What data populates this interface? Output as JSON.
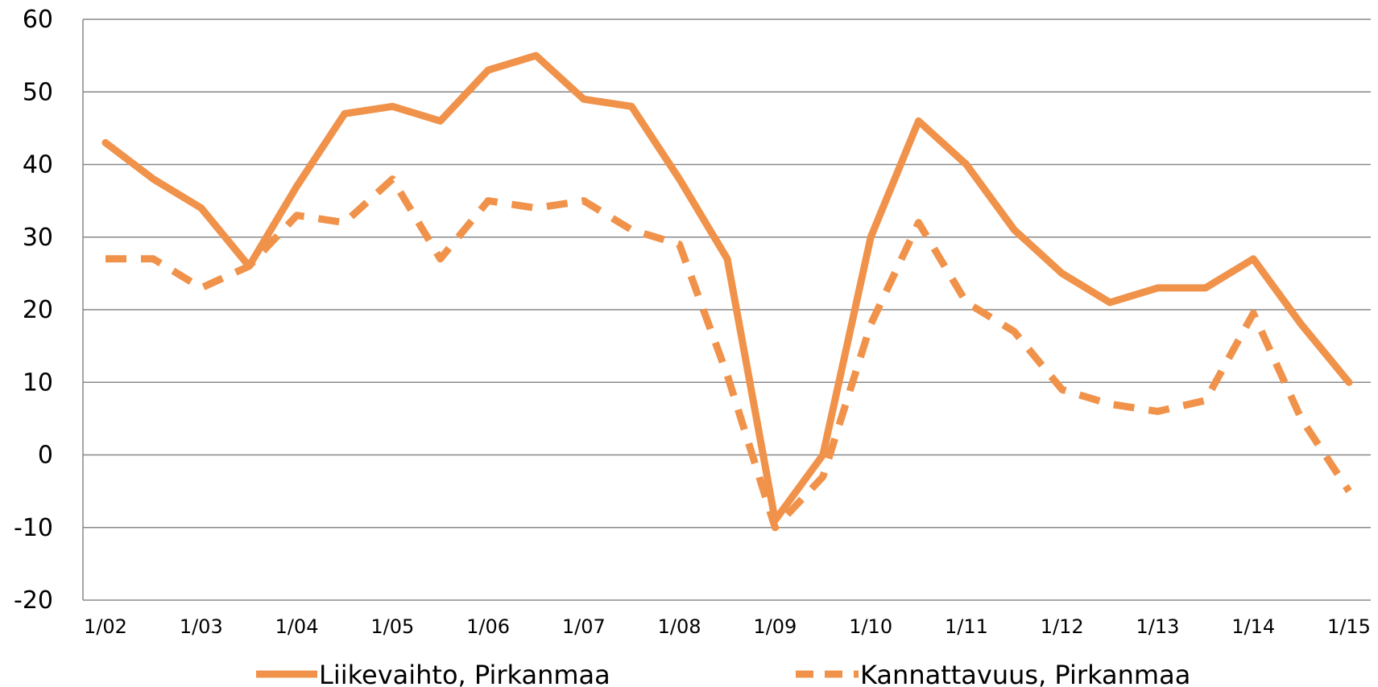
{
  "chart_data": {
    "type": "line",
    "title": "",
    "xlabel": "",
    "ylabel": "",
    "ylim": [
      -20,
      60
    ],
    "yticks": [
      "60",
      "50",
      "40",
      "30",
      "20",
      "10",
      "0",
      "-10",
      "-20"
    ],
    "x_tick_labels": [
      "1/02",
      "1/03",
      "1/04",
      "1/05",
      "1/06",
      "1/07",
      "1/08",
      "1/09",
      "1/10",
      "1/11",
      "1/12",
      "1/13",
      "1/14",
      "1/15"
    ],
    "grid": true,
    "legend_position": "bottom",
    "x": [
      "1/02",
      "7/02",
      "1/03",
      "7/03",
      "1/04",
      "7/04",
      "1/05",
      "7/05",
      "1/06",
      "7/06",
      "1/07",
      "7/07",
      "1/08",
      "7/08",
      "1/09",
      "7/09",
      "1/10",
      "7/10",
      "1/11",
      "7/11",
      "1/12",
      "7/12",
      "1/13",
      "7/13",
      "1/14",
      "7/14",
      "1/15"
    ],
    "series": [
      {
        "name": "Liikevaihto, Pirkanmaa",
        "style": "solid",
        "color": "#F0924A",
        "values": [
          43,
          38,
          34,
          26,
          37,
          47,
          48,
          46,
          53,
          55,
          49,
          48,
          38,
          27,
          -9,
          0,
          30,
          46,
          40,
          31,
          25,
          21,
          23,
          23,
          27,
          18,
          10
        ]
      },
      {
        "name": "Kannattavuus, Pirkanmaa",
        "style": "dashed",
        "color": "#F0924A",
        "values": [
          27,
          27,
          23,
          26,
          33,
          32,
          38,
          27,
          35,
          34,
          35,
          31,
          29,
          11,
          -10,
          -3,
          18,
          32,
          21,
          17,
          9,
          7,
          6,
          7.5,
          19.5,
          5,
          -5
        ]
      }
    ]
  },
  "colors": {
    "line": "#F0924A",
    "grid": "#888888",
    "axis": "#888888"
  }
}
